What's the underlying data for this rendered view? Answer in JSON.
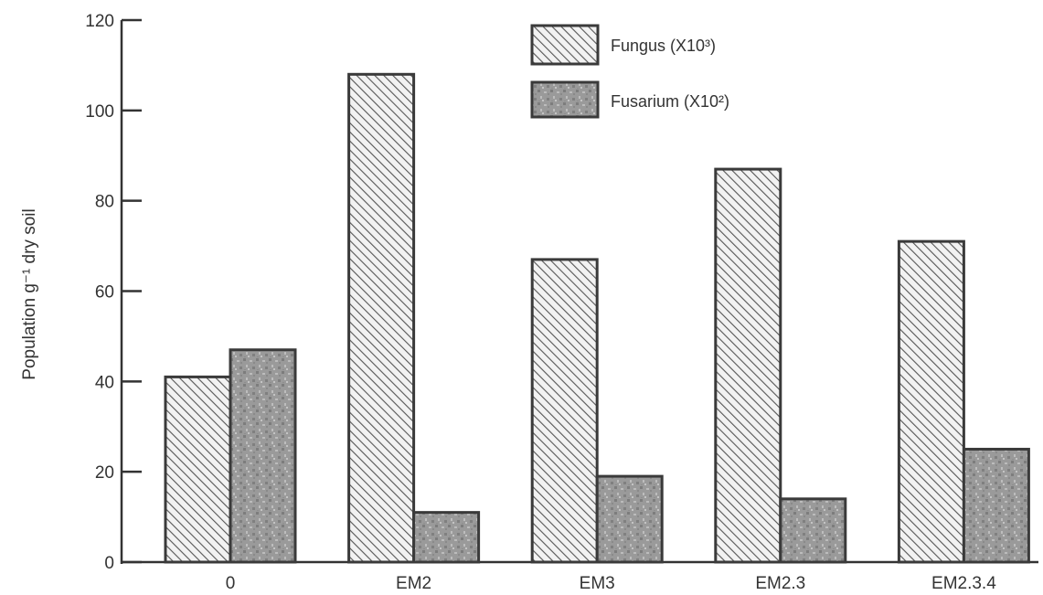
{
  "chart_data": {
    "type": "bar",
    "title": "",
    "xlabel": "",
    "ylabel": "Population g⁻¹ dry soil",
    "categories": [
      "0",
      "EM2",
      "EM3",
      "EM2.3",
      "EM2.3.4"
    ],
    "series": [
      {
        "name": "Fungus (X10³)",
        "values": [
          41,
          108,
          67,
          87,
          71
        ],
        "pattern": "diagonal-hatch"
      },
      {
        "name": "Fusarium (X10²)",
        "values": [
          47,
          11,
          19,
          14,
          25
        ],
        "pattern": "mottled-gray"
      }
    ],
    "ylim": [
      0,
      120
    ],
    "yticks": [
      0,
      20,
      40,
      60,
      80,
      100,
      120
    ],
    "grid": false,
    "legend_position": "top-center"
  }
}
